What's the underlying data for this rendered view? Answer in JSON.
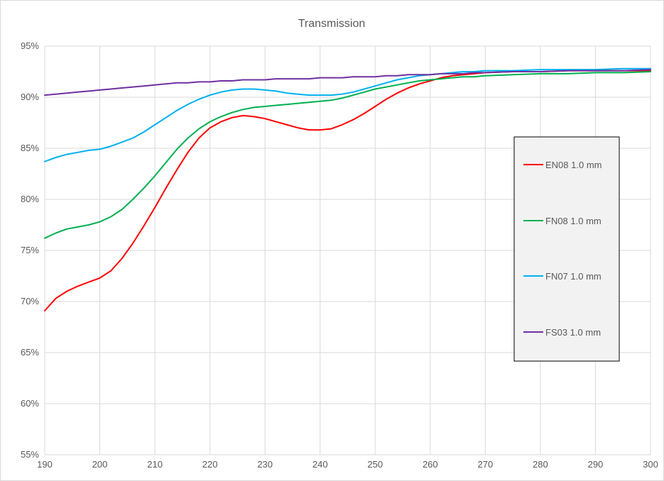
{
  "chart_data": {
    "type": "line",
    "title": "Transmission",
    "xlabel": "",
    "ylabel": "",
    "xlim": [
      190,
      300
    ],
    "ylim": [
      55,
      95
    ],
    "grid": true,
    "legend_position": "right",
    "x_ticks": [
      "190",
      "200",
      "210",
      "220",
      "230",
      "240",
      "250",
      "260",
      "270",
      "280",
      "290",
      "300"
    ],
    "y_ticks": [
      "55%",
      "60%",
      "65%",
      "70%",
      "75%",
      "80%",
      "85%",
      "90%",
      "95%"
    ],
    "x": [
      190,
      192,
      194,
      196,
      198,
      200,
      202,
      204,
      206,
      208,
      210,
      212,
      214,
      216,
      218,
      220,
      222,
      224,
      226,
      228,
      230,
      232,
      234,
      236,
      238,
      240,
      242,
      244,
      246,
      248,
      250,
      252,
      254,
      256,
      258,
      260,
      262,
      264,
      266,
      268,
      270,
      275,
      280,
      285,
      290,
      295,
      300
    ],
    "series": [
      {
        "name": "EN08 1.0 mm",
        "color": "#ff0000",
        "values": [
          69.1,
          70.3,
          71.0,
          71.5,
          71.9,
          72.3,
          73.0,
          74.2,
          75.7,
          77.4,
          79.2,
          81.1,
          82.9,
          84.6,
          86.0,
          87.0,
          87.6,
          88.0,
          88.2,
          88.1,
          87.9,
          87.6,
          87.3,
          87.0,
          86.8,
          86.8,
          86.9,
          87.3,
          87.8,
          88.4,
          89.1,
          89.8,
          90.4,
          90.9,
          91.3,
          91.6,
          91.9,
          92.1,
          92.2,
          92.3,
          92.4,
          92.5,
          92.5,
          92.6,
          92.6,
          92.6,
          92.6
        ]
      },
      {
        "name": "FN08 1.0 mm",
        "color": "#00b050",
        "values": [
          76.2,
          76.7,
          77.1,
          77.3,
          77.5,
          77.8,
          78.3,
          79.0,
          80.0,
          81.1,
          82.3,
          83.6,
          84.9,
          86.0,
          86.9,
          87.6,
          88.1,
          88.5,
          88.8,
          89.0,
          89.1,
          89.2,
          89.3,
          89.4,
          89.5,
          89.6,
          89.7,
          89.9,
          90.2,
          90.5,
          90.8,
          91.0,
          91.2,
          91.4,
          91.6,
          91.7,
          91.8,
          91.9,
          92.0,
          92.0,
          92.1,
          92.2,
          92.3,
          92.3,
          92.4,
          92.4,
          92.5
        ]
      },
      {
        "name": "FN07 1.0 mm",
        "color": "#00b0f0",
        "values": [
          83.7,
          84.1,
          84.4,
          84.6,
          84.8,
          84.9,
          85.2,
          85.6,
          86.0,
          86.6,
          87.3,
          88.0,
          88.7,
          89.3,
          89.8,
          90.2,
          90.5,
          90.7,
          90.8,
          90.8,
          90.7,
          90.6,
          90.4,
          90.3,
          90.2,
          90.2,
          90.2,
          90.3,
          90.5,
          90.8,
          91.1,
          91.4,
          91.7,
          91.9,
          92.1,
          92.2,
          92.3,
          92.4,
          92.5,
          92.5,
          92.6,
          92.6,
          92.7,
          92.7,
          92.7,
          92.8,
          92.8
        ]
      },
      {
        "name": "FS03 1.0 mm",
        "color": "#7030a0",
        "values": [
          90.2,
          90.3,
          90.4,
          90.5,
          90.6,
          90.7,
          90.8,
          90.9,
          91.0,
          91.1,
          91.2,
          91.3,
          91.4,
          91.4,
          91.5,
          91.5,
          91.6,
          91.6,
          91.7,
          91.7,
          91.7,
          91.8,
          91.8,
          91.8,
          91.8,
          91.9,
          91.9,
          91.9,
          92.0,
          92.0,
          92.0,
          92.1,
          92.1,
          92.2,
          92.2,
          92.2,
          92.3,
          92.3,
          92.3,
          92.4,
          92.4,
          92.5,
          92.5,
          92.6,
          92.6,
          92.6,
          92.7
        ]
      }
    ]
  }
}
